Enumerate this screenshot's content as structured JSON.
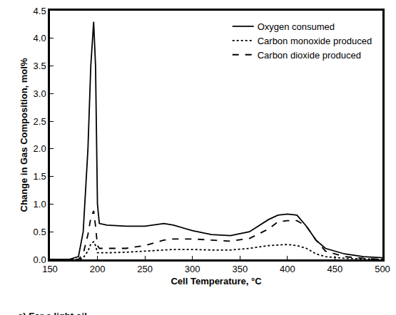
{
  "chart_data": {
    "type": "line",
    "x_label": "Cell Temperature, °C",
    "y_label": "Change in Gas Composition, mol%",
    "caption": "a) For a light oil.",
    "x": [
      150,
      170,
      180,
      185,
      190,
      193,
      196,
      198,
      200,
      202,
      210,
      230,
      250,
      270,
      280,
      300,
      320,
      340,
      360,
      380,
      390,
      400,
      410,
      420,
      430,
      440,
      460,
      480,
      500
    ],
    "series": [
      {
        "name": "Oxygen consumed",
        "color": "#000000",
        "line_style": "solid",
        "values": [
          0,
          0,
          0.05,
          0.5,
          2.0,
          3.5,
          4.3,
          3.5,
          1.0,
          0.65,
          0.62,
          0.6,
          0.6,
          0.65,
          0.62,
          0.52,
          0.45,
          0.43,
          0.5,
          0.72,
          0.8,
          0.82,
          0.8,
          0.6,
          0.35,
          0.2,
          0.1,
          0.05,
          0.03
        ]
      },
      {
        "name": "Carbon monoxide produced",
        "color": "#000000",
        "line_style": "dot",
        "values": [
          0,
          0,
          0,
          0.03,
          0.15,
          0.28,
          0.32,
          0.25,
          0.12,
          0.12,
          0.12,
          0.13,
          0.15,
          0.17,
          0.18,
          0.18,
          0.17,
          0.17,
          0.2,
          0.25,
          0.26,
          0.27,
          0.25,
          0.2,
          0.1,
          0.05,
          0.02,
          0.01,
          0
        ]
      },
      {
        "name": "Carbon dioxide produced",
        "color": "#000000",
        "line_style": "dash",
        "values": [
          0,
          0,
          0,
          0.1,
          0.45,
          0.75,
          0.88,
          0.6,
          0.25,
          0.2,
          0.2,
          0.2,
          0.25,
          0.35,
          0.37,
          0.37,
          0.35,
          0.33,
          0.38,
          0.55,
          0.68,
          0.7,
          0.7,
          0.6,
          0.35,
          0.15,
          0.05,
          0.02,
          0
        ]
      }
    ],
    "xlim": [
      150,
      500
    ],
    "xticks": [
      150,
      200,
      250,
      300,
      350,
      400,
      450,
      500
    ],
    "ylim": [
      0,
      4.5
    ],
    "yticks": [
      {
        "value": 0,
        "label": "0.0"
      },
      0.5,
      {
        "value": 1,
        "label": "1.0"
      },
      1.5,
      {
        "value": 2,
        "label": "2.0"
      },
      2.5,
      {
        "value": 3,
        "label": "3.0"
      },
      3.5,
      {
        "value": 4,
        "label": "4.0"
      },
      4.5
    ],
    "grid": false,
    "legend": "top right"
  }
}
